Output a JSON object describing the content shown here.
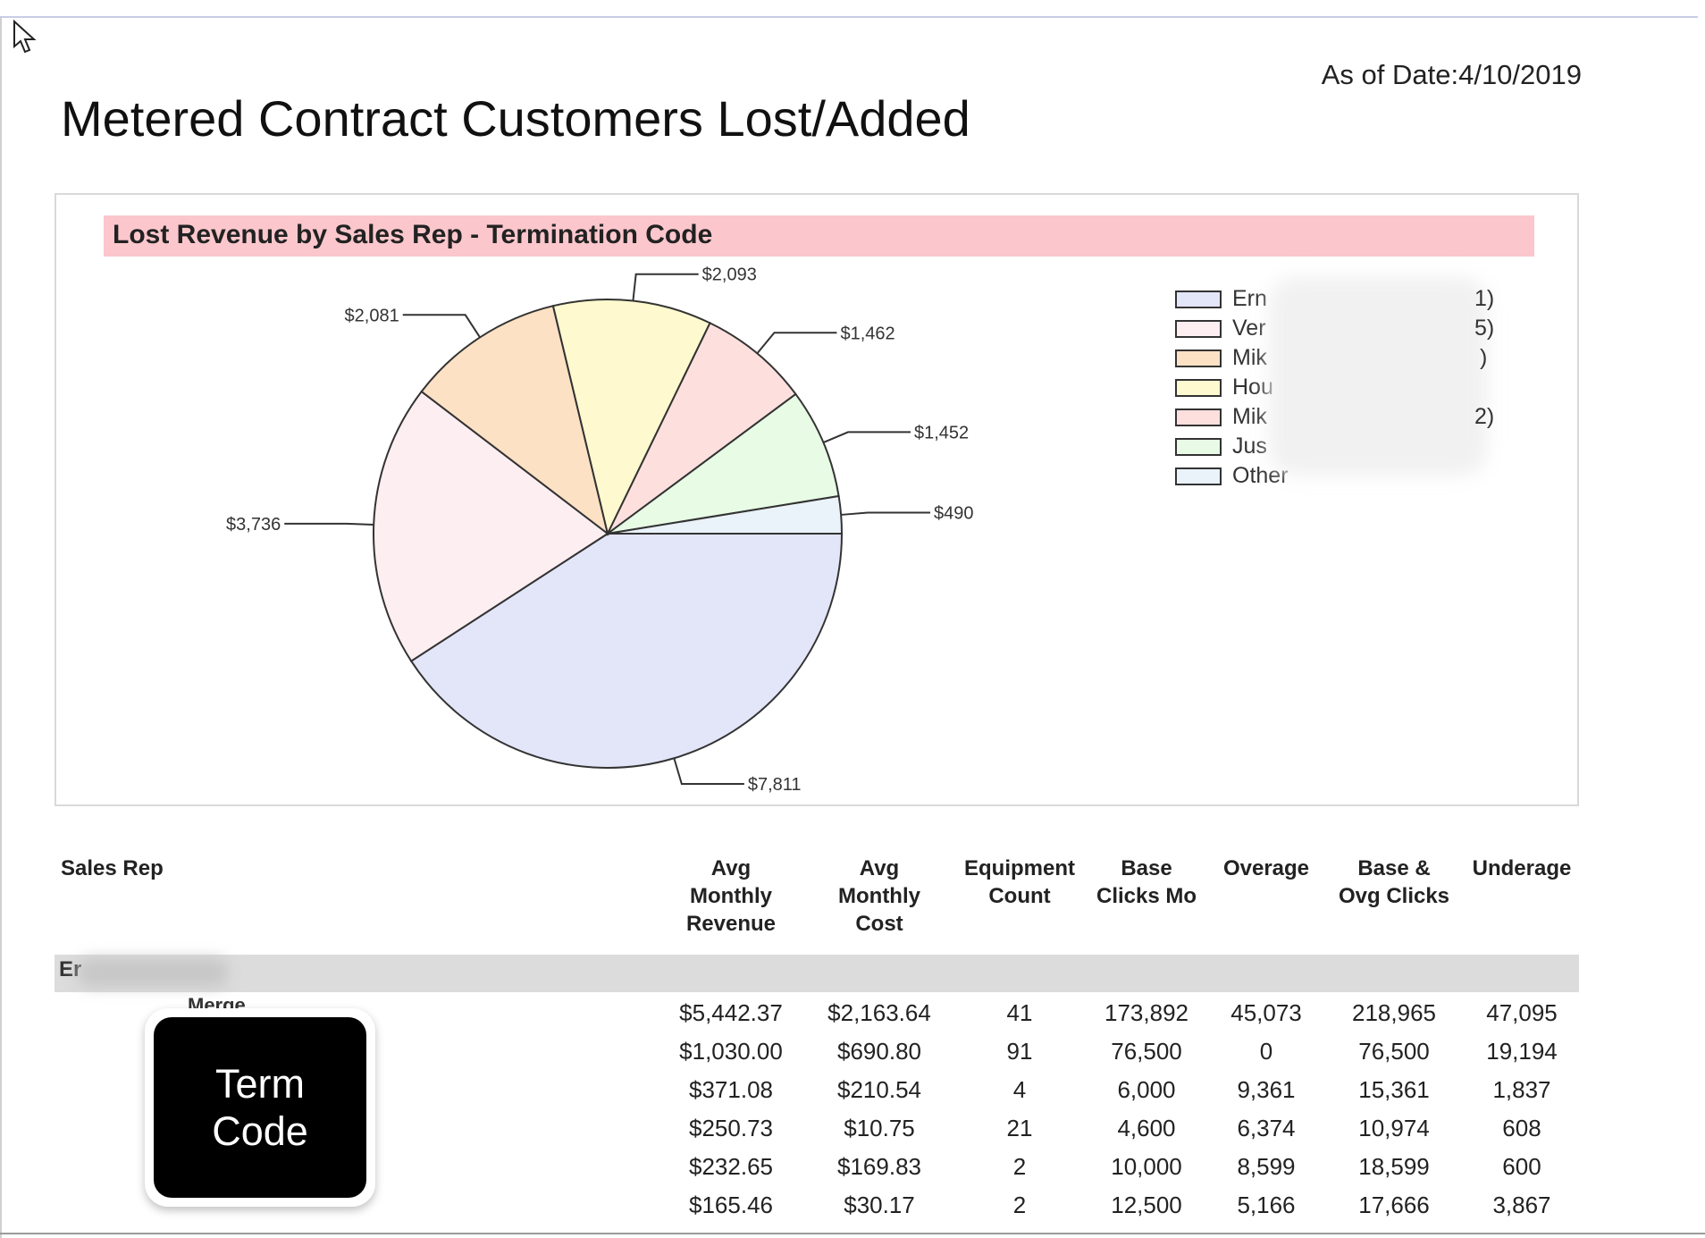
{
  "header": {
    "as_of": "As of Date:4/10/2019",
    "title": "Metered Contract Customers Lost/Added"
  },
  "chart": {
    "title": "Lost Revenue by Sales Rep - Termination Code"
  },
  "chart_data": {
    "type": "pie",
    "title": "Lost Revenue by Sales Rep - Termination Code",
    "slices": [
      {
        "label": "Ern",
        "value": 7811,
        "display": "$7,811",
        "color": "#e3e5f9"
      },
      {
        "label": "Ver",
        "value": 3736,
        "display": "$3,736",
        "color": "#fdeef1"
      },
      {
        "label": "Mik",
        "value": 2081,
        "display": "$2,081",
        "color": "#fde1c5"
      },
      {
        "label": "Hou",
        "value": 2093,
        "display": "$2,093",
        "color": "#fef9cf"
      },
      {
        "label": "Mik",
        "value": 1462,
        "display": "$1,462",
        "color": "#fde0de"
      },
      {
        "label": "Jus",
        "value": 1452,
        "display": "$1,452",
        "color": "#e7fbe5"
      },
      {
        "label": "Other",
        "value": 490,
        "display": "$490",
        "color": "#e9f3f9"
      }
    ],
    "legend_position": "right"
  },
  "legend": {
    "items": [
      {
        "label": "Ern",
        "suffix": "1)",
        "color": "#e3e5f9"
      },
      {
        "label": "Ver",
        "suffix": "5)",
        "color": "#fdeef1"
      },
      {
        "label": "Mik",
        "suffix": ")",
        "color": "#fde1c5"
      },
      {
        "label": "Hou",
        "suffix": "",
        "color": "#fef9cf"
      },
      {
        "label": "Mik",
        "suffix": "2)",
        "color": "#fde0de"
      },
      {
        "label": " Jus",
        "suffix": "",
        "color": "#e7fbe5"
      },
      {
        "label": "Other",
        "suffix": "",
        "color": "#e9f3f9"
      }
    ]
  },
  "table": {
    "headers": {
      "sales_rep": "Sales Rep",
      "avg_rev": "Avg\nMonthly\nRevenue",
      "avg_cost": "Avg\nMonthly\nCost",
      "equip": "Equipment\nCount",
      "base_clicks": "Base\nClicks Mo",
      "overage": "Overage",
      "base_ovg": "Base &\nOvg Clicks",
      "underage": "Underage"
    },
    "group_label": "Er",
    "first_row_label": "Merge",
    "rows": [
      [
        "$5,442.37",
        "$2,163.64",
        "41",
        "173,892",
        "45,073",
        "218,965",
        "47,095"
      ],
      [
        "$1,030.00",
        "$690.80",
        "91",
        "76,500",
        "0",
        "76,500",
        "19,194"
      ],
      [
        "$371.08",
        "$210.54",
        "4",
        "6,000",
        "9,361",
        "15,361",
        "1,837"
      ],
      [
        "$250.73",
        "$10.75",
        "21",
        "4,600",
        "6,374",
        "10,974",
        "608"
      ],
      [
        "$232.65",
        "$169.83",
        "2",
        "10,000",
        "8,599",
        "18,599",
        "600"
      ],
      [
        "$165.46",
        "$30.17",
        "2",
        "12,500",
        "5,166",
        "17,666",
        "3,867"
      ]
    ]
  },
  "overlay": {
    "label_line1": "Term",
    "label_line2": "Code"
  }
}
